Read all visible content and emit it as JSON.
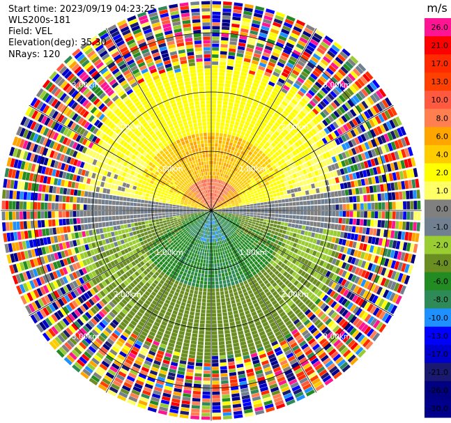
{
  "header": {
    "start_time": "Start time: 2023/09/19 04:23:25",
    "instrument": "WLS200s-181",
    "field": "Field: VEL",
    "elevation": "Elevation(deg): 35.30",
    "nrays": "NRays: 120"
  },
  "chart_data": {
    "type": "heatmap",
    "subtype": "polar-ppi",
    "field": "VEL",
    "units": "m/s",
    "nrays": 120,
    "range_rings_km": [
      1.0,
      2.0,
      3.0
    ],
    "ring_labels": [
      "1.00km",
      "2.00km",
      "3.00km"
    ],
    "outer_range_km": 3.55,
    "spokes_deg": [
      0,
      30,
      60,
      90,
      120,
      150,
      180,
      210,
      240,
      270,
      300,
      330
    ],
    "radial_pattern": {
      "north_half_core_ms": 10.0,
      "north_half_inner_ms": 6.0,
      "north_half_outer_ms": 3.0,
      "south_half_core_ms": -8.0,
      "south_half_inner_ms": -6.0,
      "south_half_outer_ms": -3.0,
      "noise_beyond_km": 2.0
    },
    "colorbar": {
      "label": "m/s",
      "ticks": [
        "26.0",
        "21.0",
        "17.0",
        "13.0",
        "10.0",
        "8.0",
        "6.0",
        "4.0",
        "2.0",
        "1.0",
        "0.0",
        "-1.0",
        "-2.0",
        "-4.0",
        "-6.0",
        "-8.0",
        "-10.0",
        "-13.0",
        "-17.0",
        "-21.0",
        "-26.0",
        "-30.0"
      ],
      "colors": [
        "#ff1493",
        "#ff0000",
        "#ff2a00",
        "#ff4000",
        "#ff5a40",
        "#ff7f50",
        "#ffa500",
        "#ffcc00",
        "#ffff00",
        "#ffff66",
        "#808080",
        "#708090",
        "#9acd32",
        "#6b8e23",
        "#228b22",
        "#2e8b57",
        "#1e90ff",
        "#0000ff",
        "#0000cd",
        "#191970",
        "#000080",
        "#00008b"
      ]
    }
  }
}
